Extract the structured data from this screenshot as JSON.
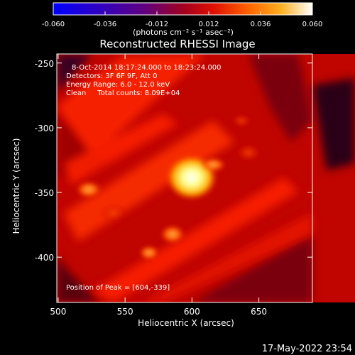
{
  "colorbar": {
    "ticks": [
      "-0.060",
      "-0.036",
      "-0.012",
      "0.012",
      "0.036",
      "0.060"
    ],
    "tick_values": [
      -0.06,
      -0.036,
      -0.012,
      0.012,
      0.036,
      0.06
    ],
    "range": [
      -0.06,
      0.06
    ],
    "unit_label": "(photons cm⁻² s⁻¹ asec⁻²)"
  },
  "plot": {
    "title": "Reconstructed RHESSI Image",
    "xlabel": "Heliocentric X (arcsec)",
    "ylabel": "Heliocentric Y (arcsec)",
    "xticks": [
      "500",
      "550",
      "600",
      "650"
    ],
    "xtick_values": [
      500,
      550,
      600,
      650
    ],
    "yticks": [
      "-250",
      "-300",
      "-350",
      "-400"
    ],
    "ytick_values": [
      -250,
      -300,
      -350,
      -400
    ],
    "xlim": [
      499,
      690
    ],
    "ylim": [
      -435,
      -243
    ],
    "info_lines": [
      "8-Oct-2014 18:17:24.000 to 18:23:24.000",
      "Detectors: 3F 6F 9F, Att 0",
      "Energy Range: 6.0 - 12.0 keV",
      "Clean     Total counts: 8.09E+04"
    ],
    "peak_text": "Position of Peak = [604,-339]",
    "peak": [
      604,
      -339
    ]
  },
  "timestamp": "17-May-2022 23:54",
  "colors": {
    "background": "#000000",
    "text": "#ffffff",
    "colormap": [
      "#0000ff",
      "#2a00c8",
      "#5a0090",
      "#8a0050",
      "#c00010",
      "#e83000",
      "#ff7a00",
      "#ffc020",
      "#ffff80",
      "#ffffff"
    ]
  }
}
